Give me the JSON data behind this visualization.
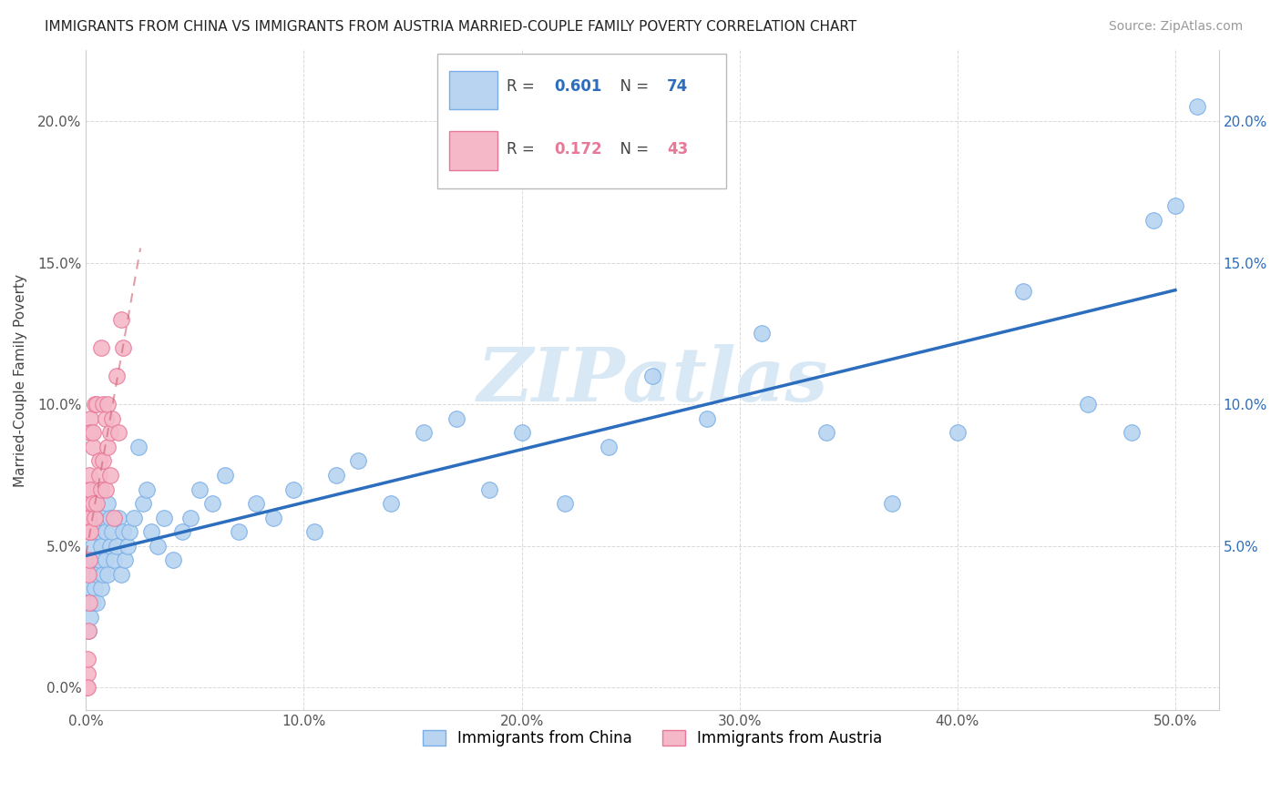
{
  "title": "IMMIGRANTS FROM CHINA VS IMMIGRANTS FROM AUSTRIA MARRIED-COUPLE FAMILY POVERTY CORRELATION CHART",
  "source_text": "Source: ZipAtlas.com",
  "ylabel": "Married-Couple Family Poverty",
  "xlim": [
    0.0,
    0.52
  ],
  "ylim": [
    -0.008,
    0.225
  ],
  "xticks": [
    0.0,
    0.1,
    0.2,
    0.3,
    0.4,
    0.5
  ],
  "xticklabels": [
    "0.0%",
    "10.0%",
    "20.0%",
    "30.0%",
    "40.0%",
    "50.0%"
  ],
  "yticks_left": [
    0.0,
    0.05,
    0.1,
    0.15,
    0.2
  ],
  "yticklabels_left": [
    "0.0%",
    "5.0%",
    "10.0%",
    "15.0%",
    "20.0%"
  ],
  "yticks_right": [
    0.05,
    0.1,
    0.15,
    0.2
  ],
  "yticklabels_right": [
    "5.0%",
    "10.0%",
    "15.0%",
    "20.0%"
  ],
  "china_fill": "#b8d4f0",
  "china_edge": "#7aaee8",
  "austria_fill": "#f5b8c8",
  "austria_edge": "#e87898",
  "china_line": "#2c6ebd",
  "austria_line": "#d06070",
  "R_china": 0.601,
  "N_china": 74,
  "R_austria": 0.172,
  "N_austria": 43,
  "legend_china": "Immigrants from China",
  "legend_austria": "Immigrants from Austria",
  "watermark": "ZIPatlas",
  "bg": "#ffffff",
  "grid_color": "#d0d0d0",
  "china_x": [
    0.001,
    0.001,
    0.002,
    0.002,
    0.002,
    0.003,
    0.003,
    0.003,
    0.004,
    0.004,
    0.004,
    0.005,
    0.005,
    0.005,
    0.006,
    0.006,
    0.007,
    0.007,
    0.008,
    0.008,
    0.009,
    0.009,
    0.01,
    0.01,
    0.011,
    0.011,
    0.012,
    0.013,
    0.014,
    0.015,
    0.016,
    0.017,
    0.018,
    0.019,
    0.02,
    0.022,
    0.024,
    0.026,
    0.028,
    0.03,
    0.033,
    0.036,
    0.04,
    0.044,
    0.048,
    0.052,
    0.058,
    0.064,
    0.07,
    0.078,
    0.086,
    0.095,
    0.105,
    0.115,
    0.125,
    0.14,
    0.155,
    0.17,
    0.185,
    0.2,
    0.22,
    0.24,
    0.26,
    0.285,
    0.31,
    0.34,
    0.37,
    0.4,
    0.43,
    0.46,
    0.48,
    0.49,
    0.5,
    0.51
  ],
  "china_y": [
    0.02,
    0.03,
    0.025,
    0.035,
    0.045,
    0.03,
    0.04,
    0.05,
    0.035,
    0.045,
    0.055,
    0.03,
    0.04,
    0.06,
    0.045,
    0.055,
    0.035,
    0.05,
    0.04,
    0.06,
    0.045,
    0.055,
    0.04,
    0.065,
    0.05,
    0.06,
    0.055,
    0.045,
    0.05,
    0.06,
    0.04,
    0.055,
    0.045,
    0.05,
    0.055,
    0.06,
    0.085,
    0.065,
    0.07,
    0.055,
    0.05,
    0.06,
    0.045,
    0.055,
    0.06,
    0.07,
    0.065,
    0.075,
    0.055,
    0.065,
    0.06,
    0.07,
    0.055,
    0.075,
    0.08,
    0.065,
    0.09,
    0.095,
    0.07,
    0.09,
    0.065,
    0.085,
    0.11,
    0.095,
    0.125,
    0.09,
    0.065,
    0.09,
    0.14,
    0.1,
    0.09,
    0.165,
    0.17,
    0.205
  ],
  "austria_x": [
    0.0003,
    0.0005,
    0.0007,
    0.0008,
    0.001,
    0.001,
    0.001,
    0.0012,
    0.0013,
    0.0014,
    0.0015,
    0.0016,
    0.0017,
    0.0018,
    0.0019,
    0.002,
    0.002,
    0.002,
    0.003,
    0.003,
    0.003,
    0.004,
    0.004,
    0.005,
    0.005,
    0.006,
    0.006,
    0.007,
    0.007,
    0.008,
    0.008,
    0.009,
    0.009,
    0.01,
    0.01,
    0.011,
    0.011,
    0.012,
    0.013,
    0.014,
    0.015,
    0.016,
    0.017
  ],
  "austria_y": [
    0.0,
    0.005,
    0.01,
    0.0,
    0.02,
    0.04,
    0.06,
    0.07,
    0.06,
    0.03,
    0.045,
    0.055,
    0.075,
    0.055,
    0.065,
    0.095,
    0.07,
    0.09,
    0.085,
    0.065,
    0.09,
    0.1,
    0.06,
    0.1,
    0.065,
    0.08,
    0.075,
    0.12,
    0.07,
    0.08,
    0.1,
    0.07,
    0.095,
    0.085,
    0.1,
    0.075,
    0.09,
    0.095,
    0.06,
    0.11,
    0.09,
    0.13,
    0.12
  ]
}
